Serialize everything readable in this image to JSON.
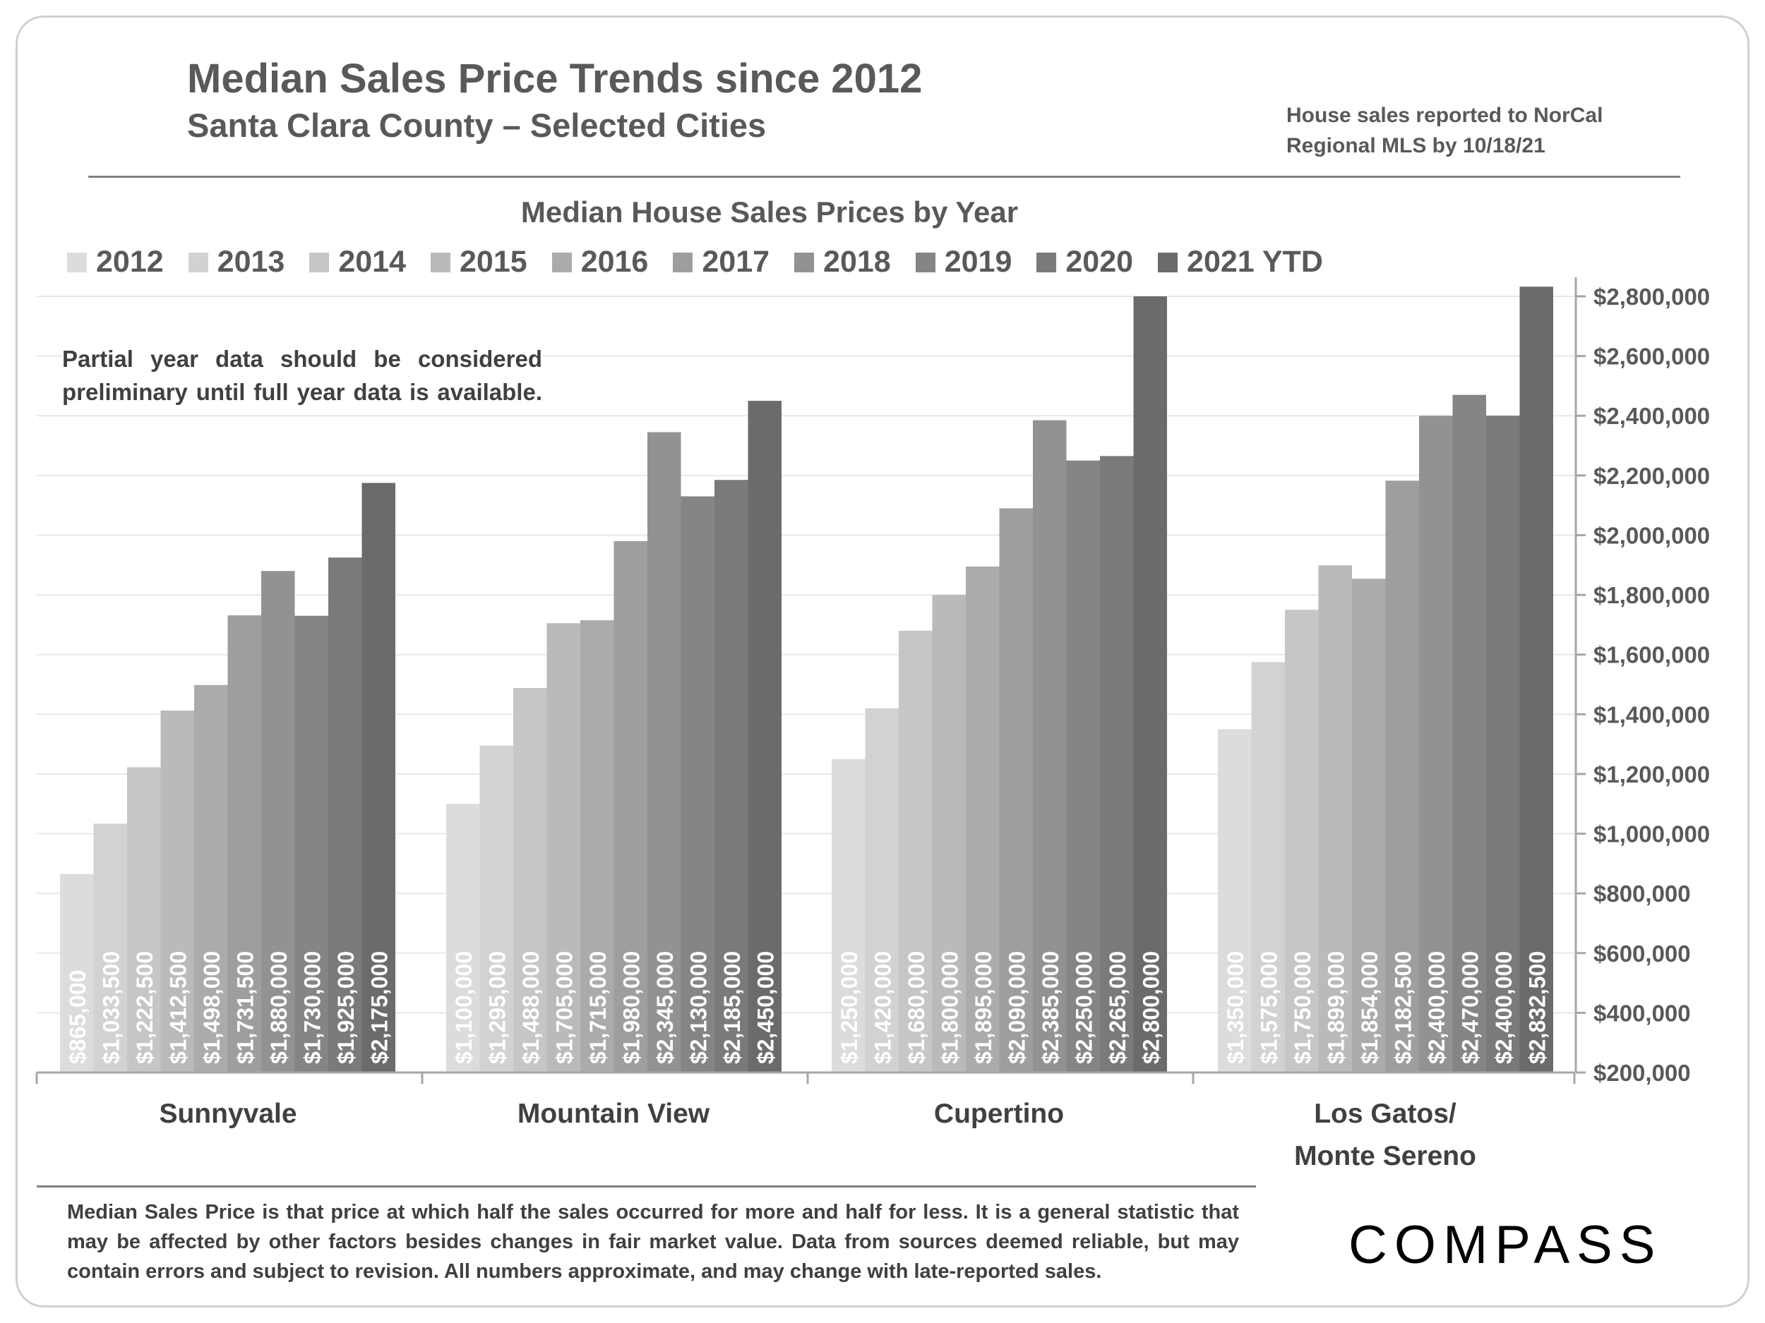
{
  "header": {
    "title": "Median Sales Price Trends since 2012",
    "subtitle": "Santa Clara County – Selected Cities",
    "source": "House sales reported to NorCal Regional MLS by 10/18/21"
  },
  "note": "Partial year data should be considered preliminary until full year data is available.",
  "footer": "Median Sales Price is that price at which half the sales occurred for more and half for less. It is a general statistic that may be affected by other factors besides changes in fair market value. Data from sources deemed reliable, but may contain errors and subject to revision.  All numbers approximate, and may change with late-reported sales.",
  "brand": {
    "logo_text": "COMPASS"
  },
  "colors": {
    "series": [
      "#dcdcdc",
      "#d2d2d2",
      "#c6c6c6",
      "#bababa",
      "#ababab",
      "#9e9e9e",
      "#929292",
      "#858585",
      "#7a7a7a",
      "#6b6b6b"
    ],
    "grid": "#e8e8e8",
    "axis": "#a6a6a6",
    "text": "#595959",
    "bar_label": "#ffffff"
  },
  "chart_data": {
    "type": "bar",
    "title": "Median House Sales Prices by Year",
    "categories": [
      "Sunnyvale",
      "Mountain View",
      "Cupertino",
      "Los Gatos/\nMonte Sereno"
    ],
    "series": [
      {
        "name": "2012",
        "values": [
          865000,
          1100000,
          1250000,
          1350000
        ],
        "labels": [
          "$865,000",
          "$1,100,000",
          "$1,250,000",
          "$1,350,000"
        ]
      },
      {
        "name": "2013",
        "values": [
          1033500,
          1295000,
          1420000,
          1575000
        ],
        "labels": [
          "$1,033,500",
          "$1,295,000",
          "$1,420,000",
          "$1,575,000"
        ]
      },
      {
        "name": "2014",
        "values": [
          1222500,
          1488000,
          1680000,
          1750000
        ],
        "labels": [
          "$1,222,500",
          "$1,488,000",
          "$1,680,000",
          "$1,750,000"
        ]
      },
      {
        "name": "2015",
        "values": [
          1412500,
          1705000,
          1800000,
          1899000
        ],
        "labels": [
          "$1,412,500",
          "$1,705,000",
          "$1,800,000",
          "$1,899,000"
        ]
      },
      {
        "name": "2016",
        "values": [
          1498000,
          1715000,
          1895000,
          1854000
        ],
        "labels": [
          "$1,498,000",
          "$1,715,000",
          "$1,895,000",
          "$1,854,000"
        ]
      },
      {
        "name": "2017",
        "values": [
          1731500,
          1980000,
          2090000,
          2182500
        ],
        "labels": [
          "$1,731,500",
          "$1,980,000",
          "$2,090,000",
          "$2,182,500"
        ]
      },
      {
        "name": "2018",
        "values": [
          1880000,
          2345000,
          2385000,
          2400000
        ],
        "labels": [
          "$1,880,000",
          "$2,345,000",
          "$2,385,000",
          "$2,400,000"
        ]
      },
      {
        "name": "2019",
        "values": [
          1730000,
          2130000,
          2250000,
          2470000
        ],
        "labels": [
          "$1,730,000",
          "$2,130,000",
          "$2,250,000",
          "$2,470,000"
        ]
      },
      {
        "name": "2020",
        "values": [
          1925000,
          2185000,
          2265000,
          2400000
        ],
        "labels": [
          "$1,925,000",
          "$2,185,000",
          "$2,265,000",
          "$2,400,000"
        ]
      },
      {
        "name": "2021 YTD",
        "values": [
          2175000,
          2450000,
          2800000,
          2832500
        ],
        "labels": [
          "$2,175,000",
          "$2,450,000",
          "$2,800,000",
          "$2,832,500"
        ]
      }
    ],
    "ylim": [
      200000,
      2800000
    ],
    "y_ticks": [
      200000,
      400000,
      600000,
      800000,
      1000000,
      1200000,
      1400000,
      1600000,
      1800000,
      2000000,
      2200000,
      2400000,
      2600000,
      2800000
    ],
    "y_tick_labels": [
      "$200,000",
      "$400,000",
      "$600,000",
      "$800,000",
      "$1,000,000",
      "$1,200,000",
      "$1,400,000",
      "$1,600,000",
      "$1,800,000",
      "$2,000,000",
      "$2,200,000",
      "$2,400,000",
      "$2,600,000",
      "$2,800,000"
    ],
    "y_axis_position": "right",
    "grid": true,
    "legend_position": "top",
    "data_labels": "inside-base-rotated"
  }
}
